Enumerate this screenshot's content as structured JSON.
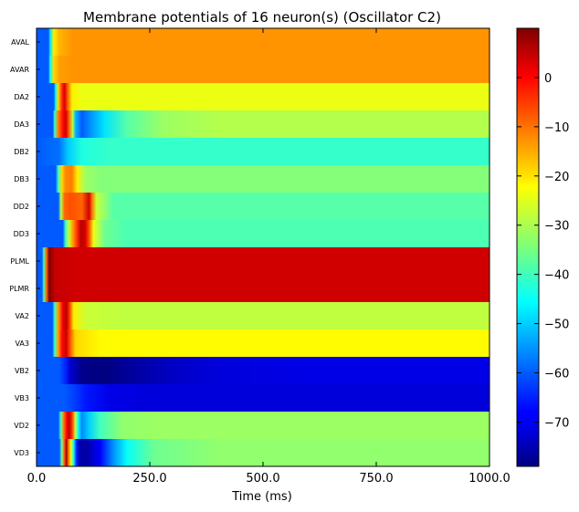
{
  "chart_data": {
    "type": "heatmap",
    "title": "Membrane potentials of 16 neuron(s) (Oscillator C2)",
    "xlabel": "Time (ms)",
    "ylabel": "",
    "xlim": [
      0,
      1000
    ],
    "x_ticks": [
      "0.0",
      "250.0",
      "500.0",
      "750.0",
      "1000.0"
    ],
    "x_tick_values": [
      0,
      250,
      500,
      750,
      1000
    ],
    "colorbar": {
      "range": [
        -79,
        10
      ],
      "ticks": [
        "0",
        "−10",
        "−20",
        "−30",
        "−40",
        "−50",
        "−60",
        "−70"
      ],
      "tick_values": [
        0,
        -10,
        -20,
        -30,
        -40,
        -50,
        -60,
        -70
      ],
      "colormap": "jet"
    },
    "neurons": [
      "AVAL",
      "AVAR",
      "DA2",
      "DA3",
      "DB2",
      "DB3",
      "DD2",
      "DD3",
      "PLML",
      "PLMR",
      "VA2",
      "VA3",
      "VB2",
      "VB3",
      "VD2",
      "VD3"
    ],
    "series": [
      {
        "name": "AVAL",
        "points": [
          [
            0,
            -60
          ],
          [
            26,
            -60
          ],
          [
            30,
            -48
          ],
          [
            38,
            -22
          ],
          [
            50,
            -17
          ],
          [
            80,
            -14
          ],
          [
            150,
            -14
          ],
          [
            1000,
            -14
          ]
        ]
      },
      {
        "name": "AVAR",
        "points": [
          [
            0,
            -60
          ],
          [
            26,
            -60
          ],
          [
            30,
            -45
          ],
          [
            38,
            -20
          ],
          [
            50,
            -15
          ],
          [
            80,
            -14
          ],
          [
            150,
            -14
          ],
          [
            1000,
            -14
          ]
        ]
      },
      {
        "name": "DA2",
        "points": [
          [
            0,
            -60
          ],
          [
            38,
            -60
          ],
          [
            42,
            -45
          ],
          [
            48,
            -20
          ],
          [
            56,
            -5
          ],
          [
            62,
            2
          ],
          [
            68,
            -8
          ],
          [
            78,
            -22
          ],
          [
            100,
            -25
          ],
          [
            160,
            -25
          ],
          [
            1000,
            -25
          ]
        ]
      },
      {
        "name": "DA3",
        "points": [
          [
            0,
            -60
          ],
          [
            36,
            -60
          ],
          [
            40,
            -40
          ],
          [
            48,
            -12
          ],
          [
            58,
            -2
          ],
          [
            65,
            3
          ],
          [
            72,
            -10
          ],
          [
            80,
            -30
          ],
          [
            86,
            -52
          ],
          [
            100,
            -60
          ],
          [
            120,
            -55
          ],
          [
            150,
            -48
          ],
          [
            200,
            -38
          ],
          [
            280,
            -32
          ],
          [
            400,
            -30
          ],
          [
            1000,
            -30
          ]
        ]
      },
      {
        "name": "DB2",
        "points": [
          [
            0,
            -60
          ],
          [
            50,
            -58
          ],
          [
            70,
            -50
          ],
          [
            100,
            -43
          ],
          [
            160,
            -41
          ],
          [
            1000,
            -41
          ]
        ]
      },
      {
        "name": "DB3",
        "points": [
          [
            0,
            -60
          ],
          [
            42,
            -60
          ],
          [
            48,
            -40
          ],
          [
            56,
            -20
          ],
          [
            64,
            -13
          ],
          [
            78,
            -12
          ],
          [
            90,
            -22
          ],
          [
            108,
            -32
          ],
          [
            140,
            -34
          ],
          [
            1000,
            -34
          ]
        ]
      },
      {
        "name": "DD2",
        "points": [
          [
            0,
            -60
          ],
          [
            48,
            -60
          ],
          [
            54,
            -30
          ],
          [
            62,
            -10
          ],
          [
            75,
            -8
          ],
          [
            100,
            -10
          ],
          [
            116,
            3
          ],
          [
            122,
            -10
          ],
          [
            132,
            -28
          ],
          [
            170,
            -38
          ],
          [
            300,
            -38
          ],
          [
            1000,
            -38
          ]
        ]
      },
      {
        "name": "DD3",
        "points": [
          [
            0,
            -60
          ],
          [
            58,
            -60
          ],
          [
            64,
            -40
          ],
          [
            72,
            -28
          ],
          [
            80,
            -15
          ],
          [
            90,
            -5
          ],
          [
            98,
            5
          ],
          [
            108,
            2
          ],
          [
            116,
            -8
          ],
          [
            126,
            -25
          ],
          [
            150,
            -36
          ],
          [
            200,
            -39
          ],
          [
            1000,
            -39
          ]
        ]
      },
      {
        "name": "PLML",
        "points": [
          [
            0,
            -60
          ],
          [
            12,
            -60
          ],
          [
            16,
            -40
          ],
          [
            22,
            -10
          ],
          [
            28,
            10
          ],
          [
            40,
            4
          ],
          [
            80,
            3
          ],
          [
            200,
            3
          ],
          [
            1000,
            3
          ]
        ]
      },
      {
        "name": "PLMR",
        "points": [
          [
            0,
            -60
          ],
          [
            12,
            -60
          ],
          [
            16,
            -40
          ],
          [
            22,
            -10
          ],
          [
            28,
            10
          ],
          [
            40,
            4
          ],
          [
            80,
            3
          ],
          [
            200,
            3
          ],
          [
            1000,
            3
          ]
        ]
      },
      {
        "name": "VA2",
        "points": [
          [
            0,
            -60
          ],
          [
            35,
            -60
          ],
          [
            40,
            -40
          ],
          [
            48,
            -15
          ],
          [
            58,
            0
          ],
          [
            66,
            5
          ],
          [
            72,
            -5
          ],
          [
            82,
            -22
          ],
          [
            110,
            -28
          ],
          [
            200,
            -29
          ],
          [
            1000,
            -29
          ]
        ]
      },
      {
        "name": "VA3",
        "points": [
          [
            0,
            -60
          ],
          [
            35,
            -60
          ],
          [
            40,
            -40
          ],
          [
            48,
            -15
          ],
          [
            56,
            -2
          ],
          [
            66,
            3
          ],
          [
            74,
            -8
          ],
          [
            86,
            -20
          ],
          [
            140,
            -23
          ],
          [
            300,
            -23
          ],
          [
            1000,
            -23
          ]
        ]
      },
      {
        "name": "VB2",
        "points": [
          [
            0,
            -60
          ],
          [
            50,
            -60
          ],
          [
            62,
            -64
          ],
          [
            75,
            -72
          ],
          [
            100,
            -78
          ],
          [
            150,
            -79
          ],
          [
            220,
            -76
          ],
          [
            300,
            -73
          ],
          [
            400,
            -71
          ],
          [
            600,
            -70
          ],
          [
            1000,
            -70
          ]
        ]
      },
      {
        "name": "VB3",
        "points": [
          [
            0,
            -60
          ],
          [
            60,
            -60
          ],
          [
            80,
            -62
          ],
          [
            110,
            -66
          ],
          [
            160,
            -70
          ],
          [
            250,
            -71
          ],
          [
            1000,
            -71
          ]
        ]
      },
      {
        "name": "VD2",
        "points": [
          [
            0,
            -60
          ],
          [
            48,
            -60
          ],
          [
            54,
            -38
          ],
          [
            60,
            -12
          ],
          [
            66,
            -2
          ],
          [
            72,
            5
          ],
          [
            78,
            -5
          ],
          [
            86,
            -28
          ],
          [
            92,
            -45
          ],
          [
            100,
            -56
          ],
          [
            115,
            -50
          ],
          [
            140,
            -40
          ],
          [
            190,
            -33
          ],
          [
            260,
            -32
          ],
          [
            1000,
            -32
          ]
        ]
      },
      {
        "name": "VD3",
        "points": [
          [
            0,
            -60
          ],
          [
            50,
            -60
          ],
          [
            56,
            -35
          ],
          [
            62,
            -8
          ],
          [
            66,
            8
          ],
          [
            70,
            -10
          ],
          [
            76,
            -25
          ],
          [
            82,
            -45
          ],
          [
            88,
            -65
          ],
          [
            95,
            -75
          ],
          [
            110,
            -76
          ],
          [
            140,
            -68
          ],
          [
            170,
            -55
          ],
          [
            200,
            -45
          ],
          [
            260,
            -36
          ],
          [
            400,
            -33
          ],
          [
            1000,
            -33
          ]
        ]
      }
    ]
  }
}
